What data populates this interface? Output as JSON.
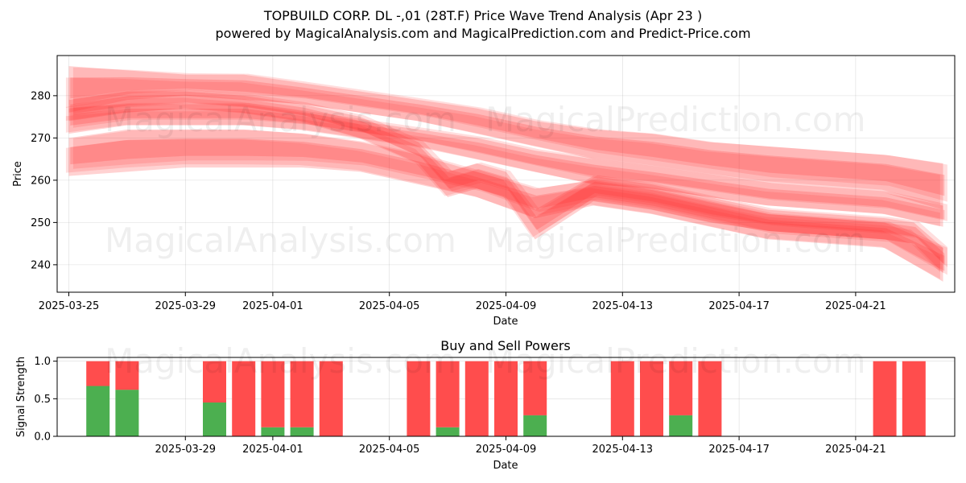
{
  "chart_data": [
    {
      "type": "area",
      "title_line1": "TOPBUILD CORP.  DL -,01 (28T.F) Price Wave Trend Analysis (Apr 23 )",
      "title_line2": "powered by MagicalAnalysis.com and MagicalPrediction.com and Predict-Price.com",
      "xlabel": "Date",
      "ylabel": "Price",
      "x_ticks": [
        "2025-03-25",
        "2025-03-29",
        "2025-04-01",
        "2025-04-05",
        "2025-04-09",
        "2025-04-13",
        "2025-04-17",
        "2025-04-21"
      ],
      "x_tick_days": [
        0,
        4,
        7,
        11,
        15,
        19,
        23,
        27
      ],
      "xlim_days": [
        -0.4,
        30.4
      ],
      "y_ticks": [
        240,
        250,
        260,
        270,
        280
      ],
      "ylim": [
        233.5,
        289.5
      ],
      "grid": true,
      "series": [
        {
          "name": "band-upper",
          "x_days": [
            0,
            2,
            4,
            6,
            8,
            10,
            12,
            14,
            16,
            18,
            20,
            22,
            24,
            26,
            28,
            30
          ],
          "lower": [
            276,
            279,
            280,
            279,
            278,
            276,
            274,
            271,
            268,
            265,
            263,
            261,
            259,
            258,
            257,
            253
          ],
          "upper": [
            287,
            286,
            285,
            285,
            283,
            281,
            279,
            277,
            274,
            272,
            271,
            269,
            268,
            267,
            266,
            264
          ]
        },
        {
          "name": "band-middle",
          "x_days": [
            0,
            2,
            4,
            6,
            8,
            10,
            12,
            14,
            16,
            18,
            20,
            22,
            24,
            26,
            28,
            30
          ],
          "lower": [
            271,
            273,
            273,
            273,
            272,
            270,
            268,
            265,
            262,
            259,
            258,
            256,
            254,
            253,
            252,
            249
          ],
          "upper": [
            277,
            278,
            278,
            278,
            276,
            274,
            272,
            270,
            267,
            265,
            263,
            261,
            259,
            258,
            257,
            254
          ]
        },
        {
          "name": "band-lower",
          "x_days": [
            0,
            2,
            4,
            6,
            8,
            10,
            12,
            14,
            16,
            18,
            20,
            22,
            24,
            26,
            28,
            30
          ],
          "lower": [
            261,
            262,
            263,
            263,
            263,
            262,
            259,
            256,
            251,
            254,
            252,
            249,
            246,
            245,
            244,
            236
          ],
          "upper": [
            270,
            272,
            272,
            272,
            271,
            269,
            266,
            262,
            258,
            260,
            258,
            255,
            252,
            251,
            250,
            244
          ]
        },
        {
          "name": "wave-dip",
          "x_days": [
            0,
            2,
            4,
            6,
            8,
            10,
            12,
            13,
            14,
            15,
            16,
            18,
            20,
            22,
            24,
            26,
            28,
            29,
            30
          ],
          "lower": [
            274,
            276,
            277,
            276,
            274,
            270,
            264,
            256,
            258,
            256,
            246,
            255,
            253,
            250,
            248,
            247,
            246,
            245,
            238
          ],
          "upper": [
            279,
            281,
            281,
            280,
            278,
            275,
            269,
            262,
            264,
            262,
            253,
            261,
            259,
            256,
            253,
            252,
            251,
            250,
            244
          ]
        }
      ]
    },
    {
      "type": "bar",
      "title": "Buy and Sell Powers",
      "xlabel": "Date",
      "ylabel": "Signal Strength",
      "x_ticks": [
        "2025-03-29",
        "2025-04-01",
        "2025-04-05",
        "2025-04-09",
        "2025-04-13",
        "2025-04-17",
        "2025-04-21"
      ],
      "x_tick_days": [
        4,
        7,
        11,
        15,
        19,
        23,
        27
      ],
      "xlim_days": [
        -0.4,
        30.4
      ],
      "y_ticks": [
        "0.0",
        "0.5",
        "1.0"
      ],
      "ylim": [
        0,
        1.05
      ],
      "grid": true,
      "bar_days": [
        1,
        2,
        5,
        6,
        7,
        8,
        9,
        12,
        13,
        14,
        15,
        16,
        19,
        20,
        21,
        22,
        28,
        29
      ],
      "buy": [
        0.67,
        0.62,
        0.45,
        0,
        0.12,
        0.12,
        0,
        0,
        0.12,
        0,
        0,
        0.28,
        0,
        0,
        0.28,
        0,
        0,
        0
      ],
      "sell": [
        0.33,
        0.38,
        0.55,
        1.0,
        0.88,
        0.88,
        1.0,
        1.0,
        0.88,
        1.0,
        1.0,
        0.72,
        1.0,
        1.0,
        0.72,
        1.0,
        1.0,
        1.0
      ],
      "colors": {
        "buy": "#4caf50",
        "sell": "#ff4d4d"
      }
    }
  ],
  "watermarks": {
    "left": "MagicalAnalysis.com",
    "right": "MagicalPrediction.com"
  },
  "colors": {
    "band": "#ff3333"
  }
}
